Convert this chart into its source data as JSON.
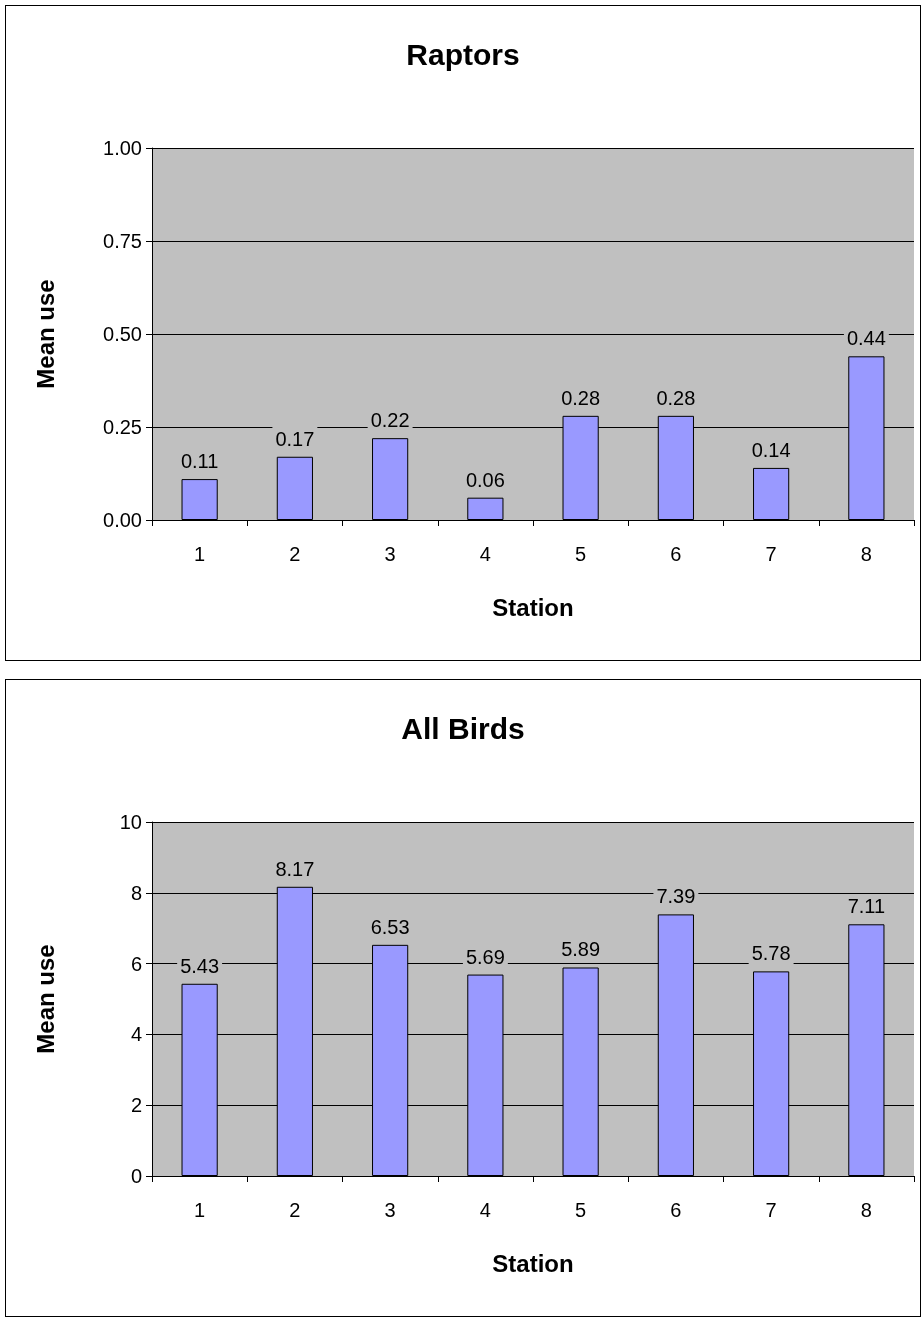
{
  "chart_data": [
    {
      "type": "bar",
      "title": "Raptors",
      "xlabel": "Station",
      "ylabel": "Mean use",
      "categories": [
        "1",
        "2",
        "3",
        "4",
        "5",
        "6",
        "7",
        "8"
      ],
      "values": [
        0.11,
        0.17,
        0.22,
        0.06,
        0.28,
        0.28,
        0.14,
        0.44
      ],
      "color": "#9999ff",
      "ylim": [
        0,
        1
      ],
      "yticks": [
        {
          "value": 0,
          "label": "0.00"
        },
        {
          "value": 0.25,
          "label": "0.25"
        },
        {
          "value": 0.5,
          "label": "0.50"
        },
        {
          "value": 0.75,
          "label": "0.75"
        },
        {
          "value": 1,
          "label": "1.00"
        }
      ],
      "grid": "y",
      "data_labels": true
    },
    {
      "type": "bar",
      "title": "All Birds",
      "xlabel": "Station",
      "ylabel": "Mean use",
      "categories": [
        "1",
        "2",
        "3",
        "4",
        "5",
        "6",
        "7",
        "8"
      ],
      "values": [
        5.43,
        8.17,
        6.53,
        5.69,
        5.89,
        7.39,
        5.78,
        7.11
      ],
      "color": "#9999ff",
      "ylim": [
        0,
        10
      ],
      "yticks": [
        0,
        2,
        4,
        6,
        8,
        10
      ],
      "grid": "y",
      "data_labels": true
    }
  ]
}
